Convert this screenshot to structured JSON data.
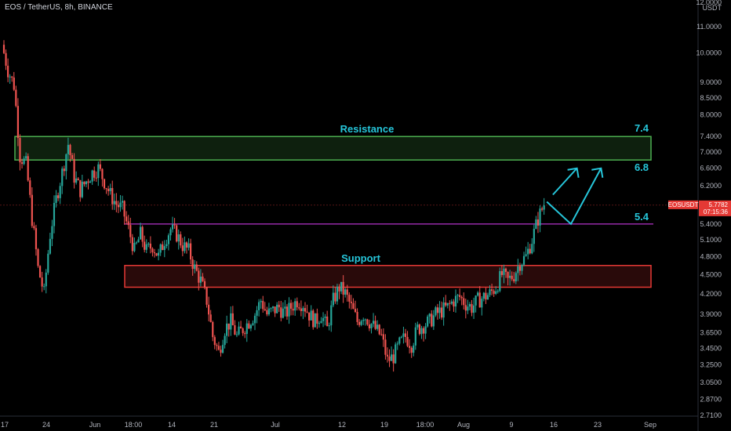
{
  "header": {
    "title": "EOS / TetherUS, 8h, BINANCE"
  },
  "currency_badge": "USDT",
  "price_tag": {
    "symbol": "EOSUSDT",
    "price": "5.7782",
    "countdown": "07:15:36",
    "color": "#e53935"
  },
  "colors": {
    "up": "#26a69a",
    "down": "#ef5350",
    "resistance": "#4caf50",
    "support": "#e53935",
    "line": "#e040fb",
    "annotation": "#26c6da"
  },
  "chart_data": {
    "type": "candlestick",
    "scale": "log",
    "grid": false,
    "ylim": [
      2.7,
      12.0
    ],
    "y_ticks": [
      "12.0000",
      "11.0000",
      "10.0000",
      "9.0000",
      "8.5000",
      "8.0000",
      "7.4000",
      "7.0000",
      "6.6000",
      "6.2000",
      "5.8000",
      "5.4000",
      "5.1000",
      "4.8000",
      "4.5000",
      "4.2000",
      "3.9000",
      "3.6500",
      "3.4500",
      "3.2500",
      "3.0500",
      "2.8700",
      "2.7100"
    ],
    "x_ticks": [
      {
        "label": "17",
        "day": 0
      },
      {
        "label": "24",
        "day": 7
      },
      {
        "label": "Jun",
        "day": 15
      },
      {
        "label": "18:00",
        "day": 20.75
      },
      {
        "label": "14",
        "day": 28
      },
      {
        "label": "21",
        "day": 35
      },
      {
        "label": "Jul",
        "day": 45
      },
      {
        "label": "12",
        "day": 56
      },
      {
        "label": "19",
        "day": 63
      },
      {
        "label": "18:00",
        "day": 69.75
      },
      {
        "label": "Aug",
        "day": 76
      },
      {
        "label": "9",
        "day": 84
      },
      {
        "label": "16",
        "day": 91
      },
      {
        "label": "23",
        "day": 98
      },
      {
        "label": "Sep",
        "day": 107
      }
    ],
    "price_path": [
      [
        0,
        10.3
      ],
      [
        1,
        9.4
      ],
      [
        2,
        8.9
      ],
      [
        3,
        6.9
      ],
      [
        4,
        6.7
      ],
      [
        5,
        5.5
      ],
      [
        6,
        4.6
      ],
      [
        7,
        4.2
      ],
      [
        8,
        5.2
      ],
      [
        9,
        5.9
      ],
      [
        10,
        6.5
      ],
      [
        11,
        7.2
      ],
      [
        12,
        6.4
      ],
      [
        13,
        6.1
      ],
      [
        14,
        6.3
      ],
      [
        15,
        6.5
      ],
      [
        16,
        6.6
      ],
      [
        17,
        6.3
      ],
      [
        18,
        6.0
      ],
      [
        19,
        5.8
      ],
      [
        20,
        5.7
      ],
      [
        21,
        5.3
      ],
      [
        22,
        4.9
      ],
      [
        23,
        5.2
      ],
      [
        24,
        4.9
      ],
      [
        25,
        5.0
      ],
      [
        26,
        4.8
      ],
      [
        27,
        5.1
      ],
      [
        28,
        5.3
      ],
      [
        29,
        5.2
      ],
      [
        30,
        5.0
      ],
      [
        31,
        4.9
      ],
      [
        32,
        4.6
      ],
      [
        33,
        4.4
      ],
      [
        34,
        4.1
      ],
      [
        35,
        3.6
      ],
      [
        36,
        3.4
      ],
      [
        37,
        3.7
      ],
      [
        38,
        3.8
      ],
      [
        39,
        3.6
      ],
      [
        40,
        3.7
      ],
      [
        41,
        3.8
      ],
      [
        42,
        3.9
      ],
      [
        43,
        4.1
      ],
      [
        44,
        3.9
      ],
      [
        45,
        3.95
      ],
      [
        46,
        4.0
      ],
      [
        47,
        3.9
      ],
      [
        48,
        4.0
      ],
      [
        49,
        4.1
      ],
      [
        50,
        4.05
      ],
      [
        51,
        3.9
      ],
      [
        52,
        3.8
      ],
      [
        53,
        3.9
      ],
      [
        54,
        3.7
      ],
      [
        55,
        4.1
      ],
      [
        56,
        4.3
      ],
      [
        57,
        4.2
      ],
      [
        58,
        4.0
      ],
      [
        59,
        3.8
      ],
      [
        60,
        3.9
      ],
      [
        61,
        3.8
      ],
      [
        62,
        3.7
      ],
      [
        63,
        3.6
      ],
      [
        64,
        3.3
      ],
      [
        65,
        3.35
      ],
      [
        66,
        3.5
      ],
      [
        67,
        3.6
      ],
      [
        68,
        3.5
      ],
      [
        69,
        3.7
      ],
      [
        70,
        3.75
      ],
      [
        71,
        3.8
      ],
      [
        72,
        3.9
      ],
      [
        73,
        3.95
      ],
      [
        74,
        4.0
      ],
      [
        75,
        4.1
      ],
      [
        76,
        4.15
      ],
      [
        77,
        4.05
      ],
      [
        78,
        4.0
      ],
      [
        79,
        4.1
      ],
      [
        80,
        4.15
      ],
      [
        81,
        4.2
      ],
      [
        82,
        4.3
      ],
      [
        83,
        4.5
      ],
      [
        84,
        4.4
      ],
      [
        85,
        4.5
      ],
      [
        86,
        4.7
      ],
      [
        87,
        4.8
      ],
      [
        88,
        5.1
      ],
      [
        89,
        5.5
      ],
      [
        90,
        5.8
      ]
    ],
    "zones": [
      {
        "name": "Resistance",
        "y_top": 7.4,
        "y_bottom": 6.8,
        "color": "#4caf50"
      },
      {
        "name": "Support",
        "y_top": 4.65,
        "y_bottom": 4.3,
        "color": "#e53935"
      }
    ],
    "horizontal_line": {
      "y": 5.4,
      "color": "#e040fb"
    },
    "levels": [
      {
        "label": "7.4",
        "y": 7.4
      },
      {
        "label": "6.8",
        "y": 6.8
      },
      {
        "label": "5.4",
        "y": 5.4
      }
    ],
    "projection": [
      [
        90,
        5.85
      ],
      [
        94,
        5.4
      ],
      [
        99,
        6.6
      ]
    ],
    "projection_first": [
      [
        91,
        6.0
      ],
      [
        95,
        6.6
      ]
    ]
  }
}
